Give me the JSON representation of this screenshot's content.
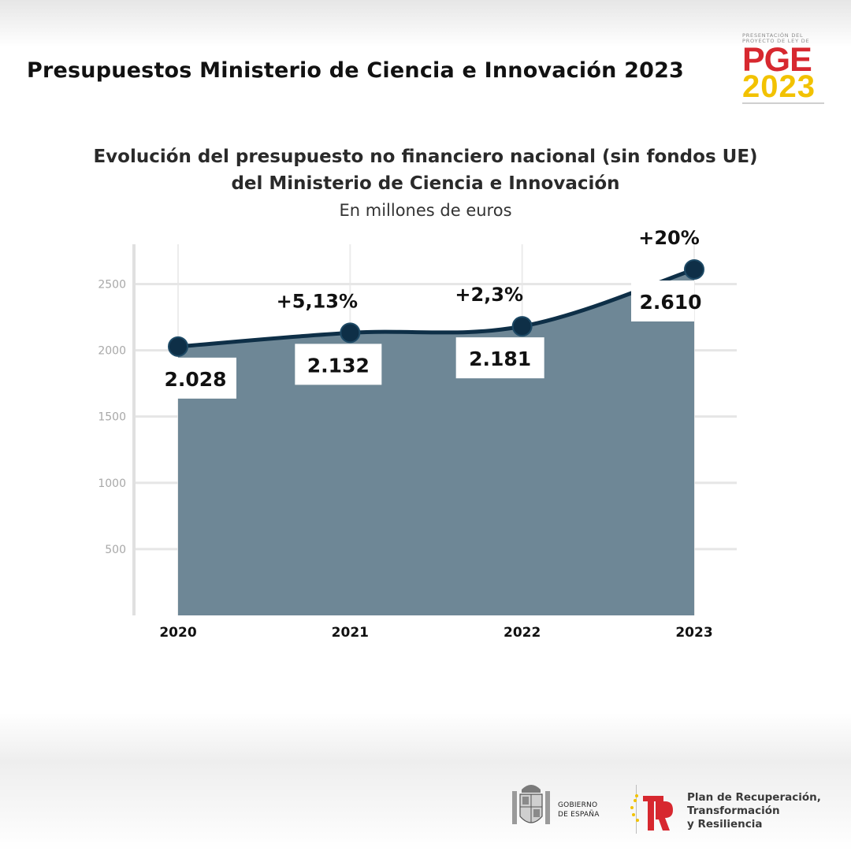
{
  "header": {
    "title": "Presupuestos Ministerio de Ciencia e Innovación 2023"
  },
  "pge_logo": {
    "line1": "PRESENTACIÓN DEL",
    "line2": "PROYECTO DE LEY DE",
    "acronym": "PGE",
    "year": "2023",
    "colors": {
      "red": "#d7282f",
      "yellow": "#f2c200"
    }
  },
  "chart_data": {
    "type": "area",
    "title": "Evolución del presupuesto no financiero nacional (sin fondos UE)\ndel Ministerio de Ciencia e Innovación",
    "subtitle": "En millones de euros",
    "x": [
      "2020",
      "2021",
      "2022",
      "2023"
    ],
    "values": [
      2028,
      2132,
      2181,
      2610
    ],
    "value_labels": [
      "2.028",
      "2.132",
      "2.181",
      "2.610"
    ],
    "change_labels": [
      "",
      "+5,13%",
      "+2,3%",
      "+20%"
    ],
    "yticks": [
      500,
      1000,
      1500,
      2000,
      2500
    ],
    "ylim": [
      0,
      2800
    ],
    "grid": true,
    "colors": {
      "area": "#6e8796",
      "line": "#0e2f47",
      "marker": "#0e2f47"
    }
  },
  "footer": {
    "gobierno": [
      "GOBIERNO",
      "DE ESPAÑA"
    ],
    "plan": [
      "Plan de Recuperación,",
      "Transformación",
      "y Resiliencia"
    ],
    "colors": {
      "plan_red": "#d7282f",
      "plan_yellow": "#f2c200"
    }
  }
}
